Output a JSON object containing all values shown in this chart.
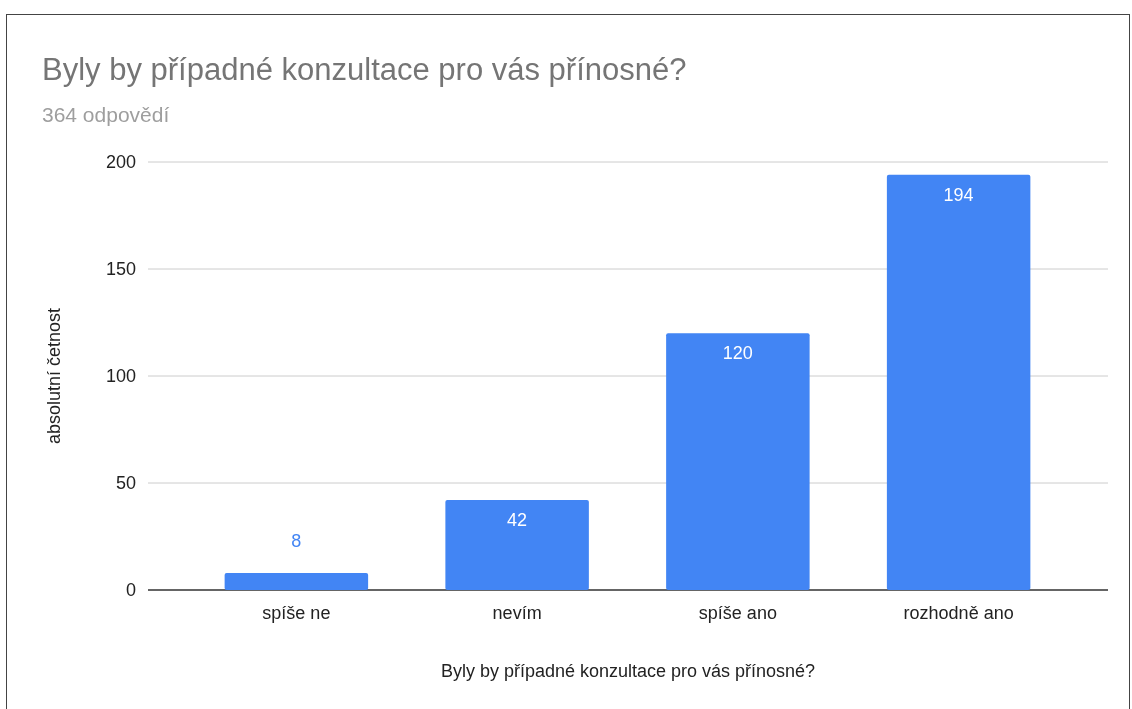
{
  "chart_data": {
    "type": "bar",
    "title": "Byly by případné konzultace pro vás přínosné?",
    "subtitle": "364 odpovědí",
    "xlabel": "Byly by případné konzultace pro vás přínosné?",
    "ylabel": "absolutní četnost",
    "categories": [
      "spíše ne",
      "nevím",
      "spíše ano",
      "rozhodně ano"
    ],
    "values": [
      8,
      42,
      120,
      194
    ],
    "color": "#4285f4",
    "ylim": [
      0,
      200
    ],
    "yticks": [
      0,
      50,
      100,
      150,
      200
    ],
    "grid": "y",
    "data_labels": true
  }
}
